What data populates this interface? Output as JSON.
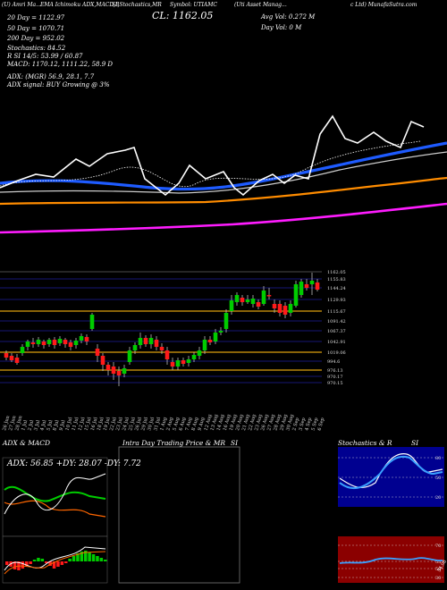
{
  "header": {
    "segments": [
      "(U) Amri Ma...",
      "EMA Ichimoku ADX,MACD,B",
      "SI,Stochastics,MR",
      "Symbol: UTIAMC",
      "(Uti Asset Manag...",
      "c Ltd) MunafaSutra.com"
    ],
    "close_label": "CL: 1162.05",
    "avg_vol_label": "Avg Vol: 0.272  M",
    "day_vol_label": "Day Vol: 0  M"
  },
  "overlay": {
    "ema_lines": [
      "20 Day = 1122.97",
      "50 Day = 1070.71",
      "200 Day = 952.02"
    ],
    "stoch_lines": [
      "Stochastics: 84.52",
      "R      SI 14/5: 53.99 / 60.87",
      "MACD: 1170.12,  1111.22, 58.9 D"
    ],
    "adx_line": "ADX:                          (MGR) 56.9,  28.1,  7.7",
    "adx_signal": "ADX  signal:                              BUY Growing @ 3%"
  },
  "colors": {
    "ema20": "#ffffff",
    "ema50": "#1e5bff",
    "ema100": "#cccccc",
    "ema200": "#ff8c00",
    "ema_long": "#ff1cff",
    "up": "#00cc00",
    "down": "#ff1a1a"
  },
  "chart_data": {
    "type": "candlestick",
    "dates": [
      "26 Jun",
      "27 Jun",
      "28 Jun",
      "1 Jul",
      "2 Jul",
      "3 Jul",
      "4 Jul",
      "5 Jul",
      "8 Jul",
      "9 Jul",
      "10 Jul",
      "11 Jul",
      "12 Jul",
      "15 Jul",
      "16 Jul",
      "18 Jul",
      "19 Jul",
      "22 Jul",
      "23 Jul",
      "24 Jul",
      "25 Jul",
      "26 Jul",
      "29 Jul",
      "30 Jul",
      "31 Jul",
      "1 Aug",
      "2 Aug",
      "5 Aug",
      "6 Aug",
      "7 Aug",
      "8 Aug",
      "9 Aug",
      "12 Aug",
      "13 Aug",
      "14 Aug",
      "16 Aug",
      "19 Aug",
      "20 Aug",
      "21 Aug",
      "22 Aug",
      "23 Aug",
      "26 Aug",
      "27 Aug",
      "28 Aug",
      "29 Aug",
      "30 Aug",
      "2 Sep",
      "3 Sep",
      "4 Sep",
      "5 Sep",
      "6 Sep"
    ],
    "price_levels": [
      "1162.05",
      "1155.83",
      "1144.24",
      "1129.93",
      "1115.67",
      "1091.42",
      "1067.37",
      "1042.91",
      "1019.06",
      "994.6",
      "976.13",
      "970.17",
      "970.15"
    ],
    "ema_labels": [
      "20 Day",
      "50 Day",
      "200 Day"
    ]
  },
  "bottom_panels": {
    "adx_macd": {
      "title": "ADX  & MACD",
      "readout": "ADX: 56.85  +DY: 28.07  -DY: 7.72",
      "macd_labels": [
        "1170.12",
        "1111.22",
        "58.9"
      ]
    },
    "intraday": {
      "title": "Intra  Day Trading Price  & MR",
      "right_title": "SI"
    },
    "stochastics": {
      "title": "Stochastics & R",
      "right_title": "SI",
      "levels_top": [
        "80",
        "50",
        "20"
      ],
      "levels_bottom": [
        "70",
        "55",
        "50",
        "30"
      ],
      "side_value": "54.08"
    }
  }
}
